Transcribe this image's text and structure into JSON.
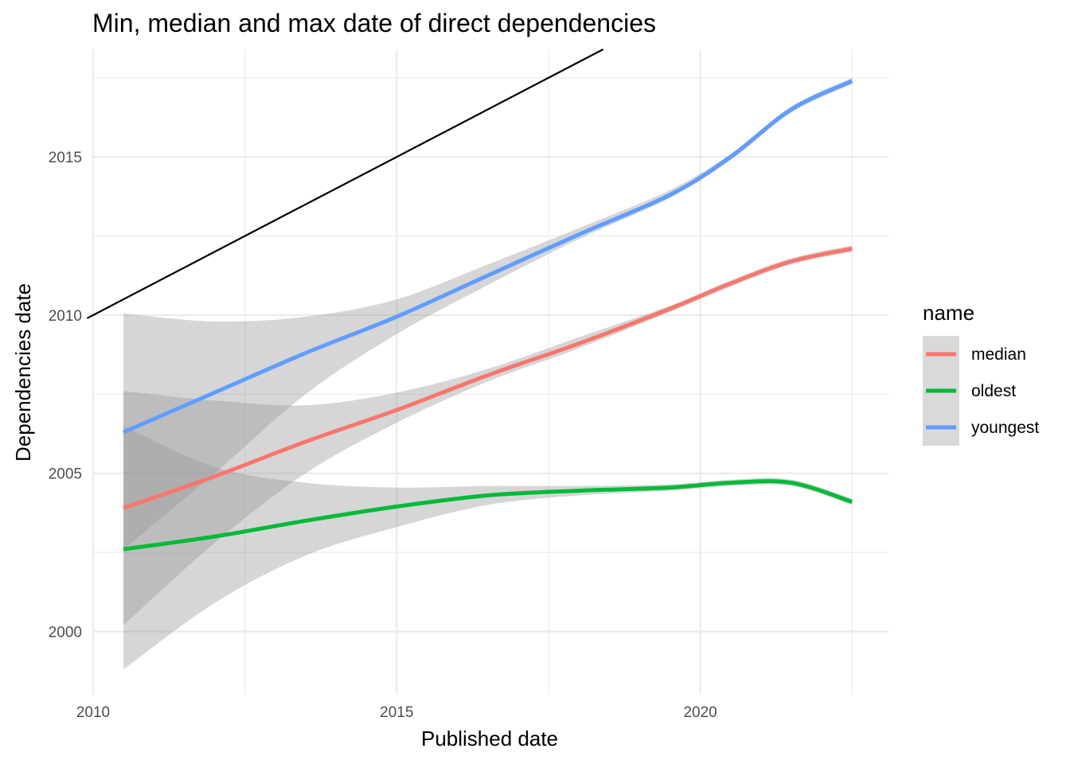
{
  "chart_data": {
    "type": "line",
    "title": "Min, median and max date of direct dependencies",
    "xlabel": "Published date",
    "ylabel": "Dependencies date",
    "xlim": [
      2010,
      2023.1
    ],
    "ylim": [
      1998.0,
      2018.4
    ],
    "x_ticks": [
      2010,
      2015,
      2020
    ],
    "y_ticks": [
      2000,
      2005,
      2010,
      2015
    ],
    "grid": true,
    "legend": {
      "title": "name",
      "position": "right"
    },
    "reference_line": {
      "type": "identity",
      "color": "#000000",
      "points": [
        [
          2009.9,
          2009.9
        ],
        [
          2018.4,
          2018.4
        ]
      ]
    },
    "series": [
      {
        "name": "median",
        "color": "#F8766D",
        "x": [
          2010.5,
          2012,
          2013.5,
          2015,
          2016.5,
          2018,
          2019.5,
          2020.5,
          2021.5,
          2022.5
        ],
        "values": [
          2003.9,
          2004.9,
          2006.0,
          2007.0,
          2008.1,
          2009.1,
          2010.2,
          2011.0,
          2011.7,
          2012.1
        ],
        "lower": [
          2000.2,
          2002.8,
          2005.0,
          2006.6,
          2007.9,
          2008.95,
          2010.1,
          2010.9,
          2011.6,
          2012.0
        ],
        "upper": [
          2007.6,
          2007.3,
          2007.15,
          2007.55,
          2008.3,
          2009.3,
          2010.3,
          2011.1,
          2011.8,
          2012.2
        ]
      },
      {
        "name": "oldest",
        "color": "#00BA38",
        "x": [
          2010.5,
          2012,
          2013.5,
          2015,
          2016.5,
          2018,
          2019.5,
          2020.5,
          2021.5,
          2022.5
        ],
        "values": [
          2002.6,
          2003.0,
          2003.5,
          2003.95,
          2004.3,
          2004.45,
          2004.55,
          2004.7,
          2004.7,
          2004.1
        ],
        "lower": [
          1998.8,
          2000.9,
          2002.4,
          2003.3,
          2004.0,
          2004.3,
          2004.45,
          2004.6,
          2004.6,
          2004.0
        ],
        "upper": [
          2006.5,
          2005.2,
          2004.7,
          2004.55,
          2004.6,
          2004.6,
          2004.65,
          2004.8,
          2004.8,
          2004.2
        ]
      },
      {
        "name": "youngest",
        "color": "#619CFF",
        "x": [
          2010.5,
          2012,
          2013.5,
          2015,
          2016.5,
          2018,
          2019.5,
          2020.5,
          2021.5,
          2022.5
        ],
        "values": [
          2006.3,
          2007.55,
          2008.8,
          2009.95,
          2011.25,
          2012.55,
          2013.8,
          2015.0,
          2016.5,
          2017.4
        ],
        "lower": [
          2002.6,
          2005.0,
          2007.5,
          2009.4,
          2010.95,
          2012.4,
          2013.7,
          2014.9,
          2016.4,
          2017.3
        ],
        "upper": [
          2010.05,
          2009.8,
          2009.95,
          2010.5,
          2011.6,
          2012.75,
          2013.95,
          2015.1,
          2016.6,
          2017.5
        ]
      }
    ]
  }
}
